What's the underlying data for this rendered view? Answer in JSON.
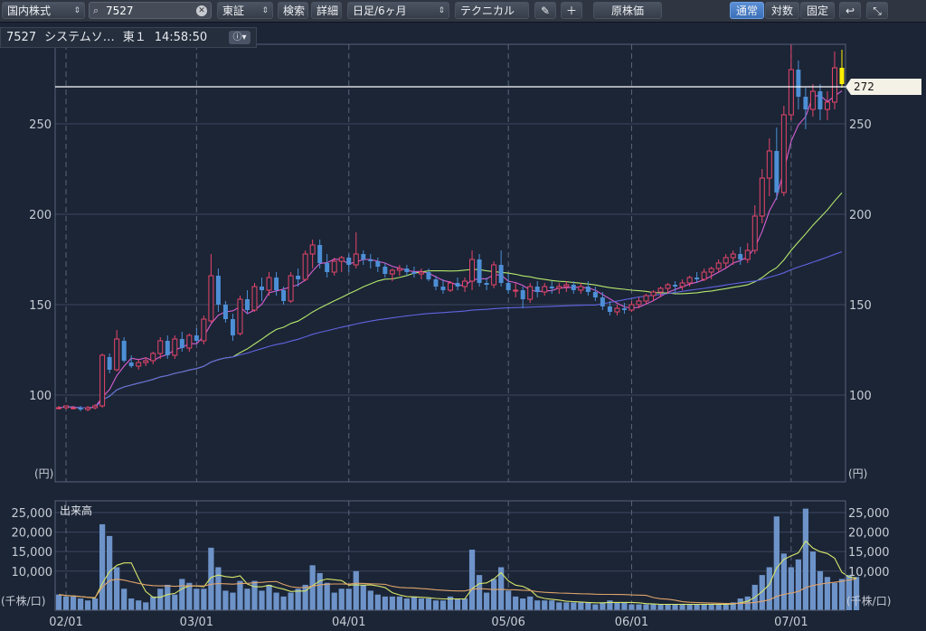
{
  "toolbar": {
    "market": "国内株式",
    "search_value": "7527",
    "exchange": "東証",
    "search_label": "検索",
    "detail_label": "詳細",
    "period": "日足/6ヶ月",
    "technical": "テクニカル",
    "original_price": "原株価",
    "scale_normal": "通常",
    "scale_log": "対数",
    "scale_fixed": "固定"
  },
  "header": {
    "code": "7527",
    "name": "システムソ…",
    "exchange": "東１",
    "time": "14:58:50"
  },
  "chart_data": {
    "type": "candlestick",
    "price_panel": {
      "y_ticks": [
        100,
        150,
        200,
        250
      ],
      "ylim": [
        52,
        294
      ],
      "unit_label": "(円)",
      "current_price": 272,
      "current_price_label": "272",
      "grid": true
    },
    "volume_panel": {
      "title": "出来高",
      "y_ticks": [
        10000,
        15000,
        20000,
        25000
      ],
      "y_tick_labels": [
        "10,000",
        "15,000",
        "20,000",
        "25,000"
      ],
      "ylim": [
        0,
        28000
      ],
      "unit_label": "(千株/口)"
    },
    "x_tick_labels": [
      "02/01",
      "03/01",
      "04/01",
      "05/06",
      "06/01",
      "07/01"
    ],
    "x_tick_index": [
      1,
      19,
      40,
      62,
      79,
      101
    ],
    "candles": [
      [
        93,
        94,
        92,
        93
      ],
      [
        93,
        94,
        92,
        94
      ],
      [
        93,
        94,
        92,
        93
      ],
      [
        93,
        94,
        91,
        92
      ],
      [
        92,
        94,
        91,
        93
      ],
      [
        93,
        95,
        92,
        94
      ],
      [
        94,
        123,
        93,
        122
      ],
      [
        121,
        123,
        112,
        114
      ],
      [
        114,
        136,
        113,
        131
      ],
      [
        130,
        132,
        118,
        119
      ],
      [
        118,
        122,
        115,
        116
      ],
      [
        116,
        120,
        114,
        118
      ],
      [
        118,
        121,
        116,
        119
      ],
      [
        119,
        124,
        117,
        123
      ],
      [
        123,
        132,
        120,
        130
      ],
      [
        130,
        133,
        120,
        122
      ],
      [
        122,
        133,
        120,
        131
      ],
      [
        131,
        135,
        124,
        126
      ],
      [
        126,
        134,
        124,
        133
      ],
      [
        133,
        137,
        129,
        130
      ],
      [
        130,
        144,
        128,
        142
      ],
      [
        141,
        178,
        140,
        166
      ],
      [
        166,
        170,
        146,
        150
      ],
      [
        150,
        152,
        140,
        142
      ],
      [
        142,
        145,
        130,
        133
      ],
      [
        134,
        155,
        133,
        153
      ],
      [
        153,
        158,
        145,
        147
      ],
      [
        147,
        162,
        146,
        160
      ],
      [
        160,
        165,
        152,
        158
      ],
      [
        158,
        168,
        155,
        165
      ],
      [
        165,
        168,
        155,
        158
      ],
      [
        158,
        160,
        150,
        152
      ],
      [
        152,
        168,
        151,
        166
      ],
      [
        166,
        170,
        160,
        164
      ],
      [
        164,
        180,
        163,
        178
      ],
      [
        178,
        186,
        170,
        183
      ],
      [
        183,
        186,
        170,
        173
      ],
      [
        173,
        178,
        165,
        168
      ],
      [
        168,
        176,
        166,
        174
      ],
      [
        174,
        177,
        168,
        176
      ],
      [
        176,
        178,
        168,
        172
      ],
      [
        172,
        190,
        170,
        178
      ],
      [
        178,
        180,
        172,
        175
      ],
      [
        175,
        178,
        170,
        174
      ],
      [
        174,
        176,
        168,
        171
      ],
      [
        171,
        173,
        165,
        167
      ],
      [
        167,
        170,
        163,
        169
      ],
      [
        169,
        172,
        166,
        170
      ],
      [
        170,
        172,
        166,
        168
      ],
      [
        168,
        171,
        165,
        167
      ],
      [
        167,
        170,
        164,
        168
      ],
      [
        168,
        170,
        163,
        164
      ],
      [
        164,
        166,
        158,
        160
      ],
      [
        160,
        164,
        156,
        158
      ],
      [
        158,
        163,
        157,
        162
      ],
      [
        162,
        165,
        158,
        160
      ],
      [
        160,
        165,
        157,
        163
      ],
      [
        163,
        180,
        158,
        175
      ],
      [
        175,
        178,
        160,
        162
      ],
      [
        162,
        165,
        158,
        161
      ],
      [
        161,
        174,
        159,
        172
      ],
      [
        172,
        180,
        160,
        162
      ],
      [
        162,
        167,
        156,
        158
      ],
      [
        158,
        162,
        154,
        158
      ],
      [
        158,
        160,
        148,
        153
      ],
      [
        153,
        162,
        151,
        160
      ],
      [
        160,
        163,
        154,
        157
      ],
      [
        157,
        162,
        155,
        160
      ],
      [
        160,
        163,
        156,
        159
      ],
      [
        159,
        162,
        156,
        160
      ],
      [
        160,
        163,
        157,
        161
      ],
      [
        161,
        163,
        156,
        158
      ],
      [
        158,
        162,
        156,
        160
      ],
      [
        160,
        163,
        155,
        157
      ],
      [
        157,
        160,
        152,
        154
      ],
      [
        154,
        157,
        147,
        149
      ],
      [
        149,
        152,
        144,
        146
      ],
      [
        146,
        150,
        144,
        148
      ],
      [
        148,
        151,
        145,
        147
      ],
      [
        147,
        152,
        146,
        150
      ],
      [
        150,
        154,
        148,
        152
      ],
      [
        152,
        156,
        150,
        155
      ],
      [
        155,
        158,
        152,
        157
      ],
      [
        157,
        160,
        154,
        159
      ],
      [
        159,
        162,
        156,
        161
      ],
      [
        161,
        163,
        157,
        160
      ],
      [
        160,
        164,
        158,
        162
      ],
      [
        162,
        166,
        160,
        165
      ],
      [
        165,
        168,
        162,
        164
      ],
      [
        164,
        170,
        163,
        168
      ],
      [
        168,
        171,
        164,
        170
      ],
      [
        170,
        175,
        168,
        173
      ],
      [
        173,
        178,
        170,
        176
      ],
      [
        176,
        180,
        172,
        178
      ],
      [
        178,
        182,
        172,
        175
      ],
      [
        175,
        184,
        173,
        180
      ],
      [
        180,
        205,
        178,
        199
      ],
      [
        199,
        225,
        195,
        220
      ],
      [
        220,
        242,
        210,
        235
      ],
      [
        235,
        248,
        208,
        212
      ],
      [
        212,
        260,
        210,
        255
      ],
      [
        255,
        294,
        252,
        280
      ],
      [
        280,
        285,
        258,
        265
      ],
      [
        265,
        270,
        247,
        258
      ],
      [
        258,
        272,
        254,
        268
      ],
      [
        268,
        272,
        252,
        258
      ],
      [
        258,
        268,
        252,
        262
      ],
      [
        262,
        290,
        258,
        281
      ],
      [
        281,
        291,
        270,
        272
      ]
    ],
    "volume": [
      4000,
      3500,
      3500,
      3000,
      2500,
      3000,
      22000,
      19000,
      11000,
      5500,
      3000,
      2500,
      2000,
      3500,
      5500,
      6500,
      4000,
      8000,
      7000,
      5500,
      5500,
      16000,
      11000,
      5000,
      4500,
      7500,
      5500,
      7500,
      5000,
      6500,
      4500,
      3500,
      4500,
      5500,
      6500,
      11500,
      9500,
      7000,
      4500,
      5500,
      5500,
      10000,
      6500,
      5000,
      4000,
      3500,
      3500,
      3500,
      3000,
      3500,
      3000,
      3000,
      2500,
      2500,
      3500,
      3000,
      3000,
      15500,
      9000,
      4500,
      8000,
      11000,
      5000,
      3500,
      3000,
      3500,
      2500,
      2500,
      2500,
      2000,
      2000,
      2000,
      2000,
      2000,
      1500,
      2000,
      2500,
      2000,
      2000,
      1500,
      1500,
      1500,
      1500,
      1500,
      1500,
      1500,
      1500,
      1500,
      1500,
      1500,
      1500,
      1500,
      1500,
      2000,
      3000,
      3500,
      6500,
      9000,
      11000,
      24000,
      14500,
      11000,
      13000,
      26000,
      15000,
      10000,
      8500,
      7000,
      8000,
      9000,
      8500
    ]
  }
}
